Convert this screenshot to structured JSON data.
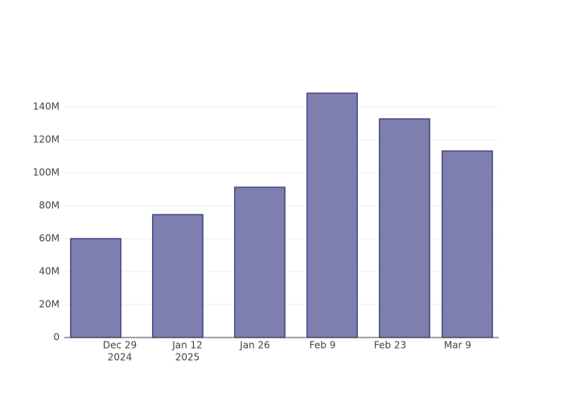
{
  "chart_data": {
    "type": "bar",
    "x": [
      "2024-12-24",
      "2025-01-10",
      "2025-01-27",
      "2025-02-11",
      "2025-02-26",
      "2025-03-11"
    ],
    "values": [
      60000000,
      74600000,
      91200000,
      148300000,
      132700000,
      113200000
    ],
    "color": "#7f7faf",
    "line_color": "#47478a",
    "xlim": [
      "2024-12-17T12:00",
      "2025-03-17T12:00"
    ],
    "xticks": [
      {
        "value": "2024-12-29",
        "label": [
          "Dec 29",
          "2024"
        ]
      },
      {
        "value": "2025-01-12",
        "label": [
          "Jan 12",
          "2025"
        ]
      },
      {
        "value": "2025-01-26",
        "label": [
          "Jan 26"
        ]
      },
      {
        "value": "2025-02-09",
        "label": [
          "Feb 9"
        ]
      },
      {
        "value": "2025-02-23",
        "label": [
          "Feb 23"
        ]
      },
      {
        "value": "2025-03-09",
        "label": [
          "Mar 9"
        ]
      }
    ],
    "ylim": [
      0,
      156100000
    ],
    "yticks": [
      0,
      {
        "value": 20000000,
        "label": "20M"
      },
      {
        "value": 40000000,
        "label": "40M"
      },
      {
        "value": 60000000,
        "label": "60M"
      },
      {
        "value": 80000000,
        "label": "80M"
      },
      {
        "value": 100000000,
        "label": "100M"
      },
      {
        "value": 120000000,
        "label": "120M"
      },
      {
        "value": 140000000,
        "label": "140M"
      }
    ],
    "grid": true
  }
}
